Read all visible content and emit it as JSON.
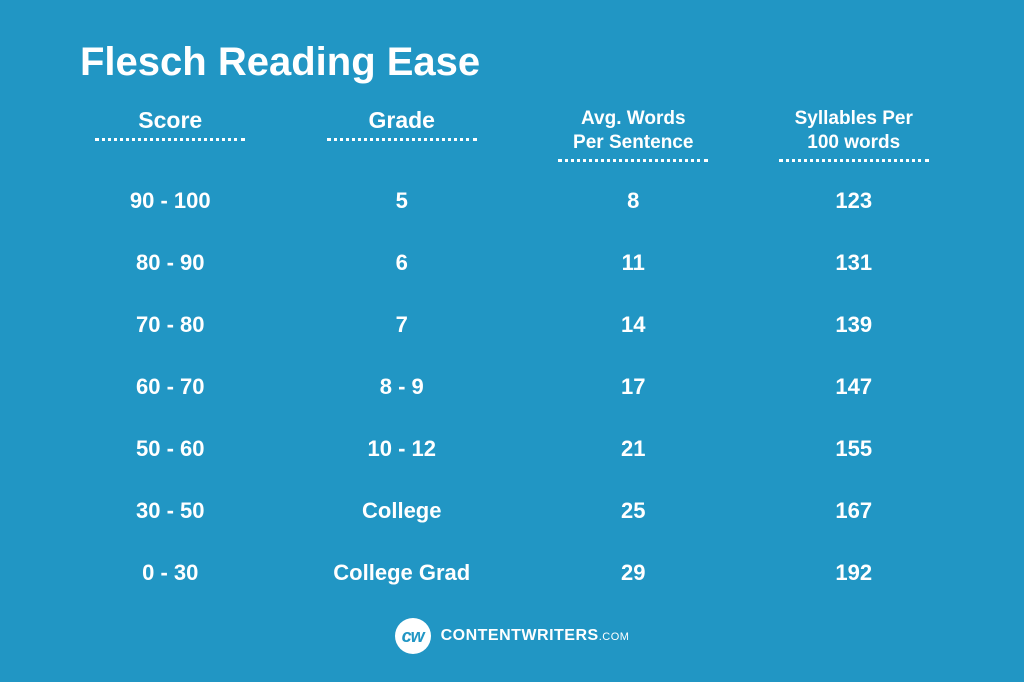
{
  "title": "Flesch Reading Ease",
  "background_color": "#2196c4",
  "text_color": "#ffffff",
  "table": {
    "type": "table",
    "columns": [
      {
        "label": "Score",
        "two_line": false
      },
      {
        "label": "Grade",
        "two_line": false
      },
      {
        "label": "Avg. Words\nPer Sentence",
        "two_line": true
      },
      {
        "label": "Syllables Per\n100 words",
        "two_line": true
      }
    ],
    "rows": [
      [
        "90 - 100",
        "5",
        "8",
        "123"
      ],
      [
        "80 - 90",
        "6",
        "11",
        "131"
      ],
      [
        "70 - 80",
        "7",
        "14",
        "139"
      ],
      [
        "60 - 70",
        "8 - 9",
        "17",
        "147"
      ],
      [
        "50 - 60",
        "10 - 12",
        "21",
        "155"
      ],
      [
        "30 - 50",
        "College",
        "25",
        "167"
      ],
      [
        "0 - 30",
        "College Grad",
        "29",
        "192"
      ]
    ],
    "header_fontsize": 23,
    "header_two_line_fontsize": 19,
    "cell_fontsize": 22,
    "underline_style": "dotted",
    "underline_color": "#ffffff"
  },
  "footer": {
    "logo_text": "cw",
    "brand_main": "CONTENTWRITERS",
    "brand_tld": ".COM",
    "logo_bg": "#ffffff",
    "logo_fg": "#2196c4"
  }
}
